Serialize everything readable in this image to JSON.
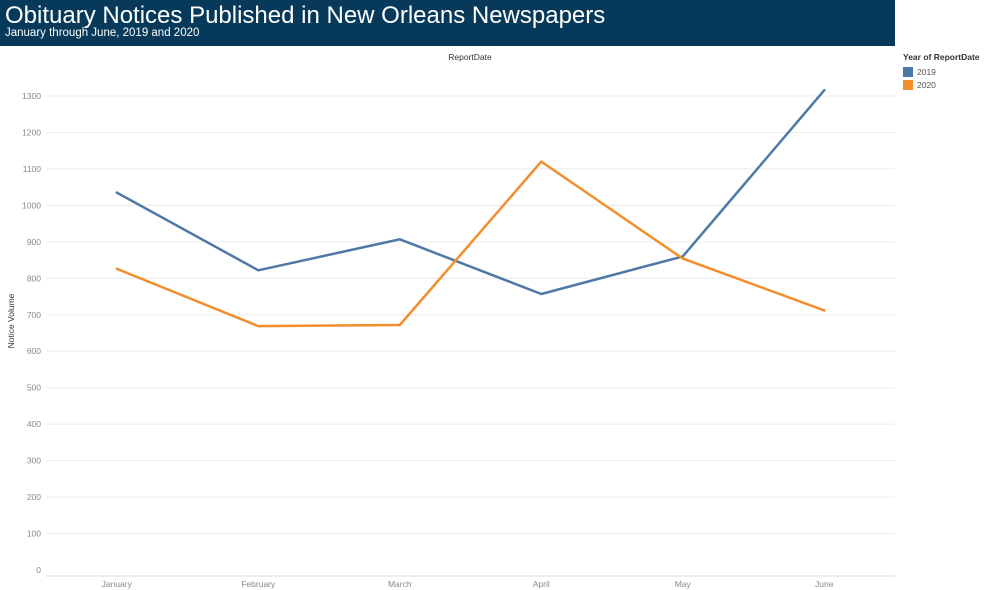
{
  "header": {
    "title": "Obituary Notices Published in New Orleans Newspapers",
    "subtitle": "January through June, 2019 and 2020",
    "background": "#073a5a"
  },
  "legend": {
    "title": "Year of ReportDate",
    "placement": "top-right"
  },
  "chart_data": {
    "type": "line",
    "column_header": "ReportDate",
    "categories": [
      "January",
      "February",
      "March",
      "April",
      "May",
      "June"
    ],
    "ylabel": "Notice Volume",
    "ylim": [
      0,
      1350
    ],
    "yticks": [
      0,
      100,
      200,
      300,
      400,
      500,
      600,
      700,
      800,
      900,
      1000,
      1100,
      1200,
      1300
    ],
    "grid": true,
    "series": [
      {
        "name": "2019",
        "color": "#4e79a7",
        "values": [
          1035,
          822,
          907,
          757,
          860,
          1316
        ]
      },
      {
        "name": "2020",
        "color": "#f28e2b",
        "values": [
          826,
          669,
          672,
          1120,
          854,
          712
        ]
      }
    ]
  }
}
